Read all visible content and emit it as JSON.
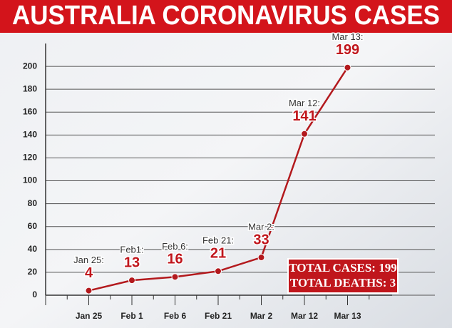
{
  "chart_data": {
    "type": "line",
    "title": "AUSTRALIA CORONAVIRUS CASES",
    "categories": [
      "Jan 25",
      "Feb 1",
      "Feb 6",
      "Feb 21",
      "Mar 2",
      "Mar 12",
      "Mar 13"
    ],
    "point_labels": [
      "Jan 25:",
      "Feb1:",
      "Feb 6:",
      "Feb 21:",
      "Mar 2:",
      "Mar 12:",
      "Mar 13:"
    ],
    "values": [
      4,
      13,
      16,
      21,
      33,
      141,
      199
    ],
    "color": "#b3191d",
    "ylim": [
      0,
      220
    ],
    "yticks": [
      0,
      20,
      40,
      60,
      80,
      100,
      120,
      140,
      160,
      180,
      200
    ],
    "grid": true,
    "annotations": [
      "TOTAL CASES: 199",
      "TOTAL DEATHS: 3"
    ]
  }
}
